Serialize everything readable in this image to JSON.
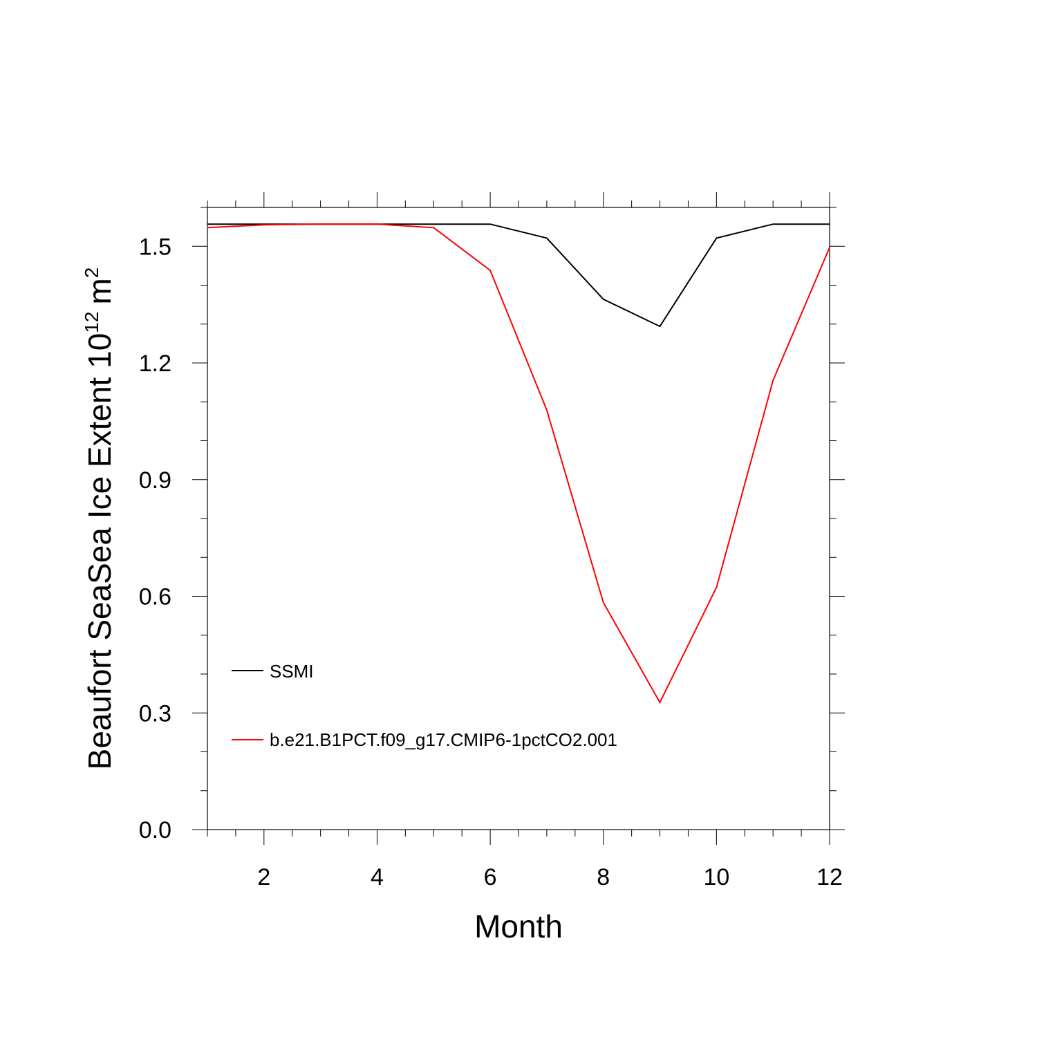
{
  "chart_data": {
    "type": "line",
    "title": "",
    "xlabel": "Month",
    "ylabel_main": "Beaufort SeaSea Ice Extent 10",
    "ylabel_exponent": "12",
    "ylabel_unit": "m",
    "ylabel_unit_exponent": "2",
    "xlim": [
      1,
      12
    ],
    "ylim": [
      0,
      1.6
    ],
    "x_ticks": [
      2,
      4,
      6,
      8,
      10,
      12
    ],
    "x_tick_labels": [
      "2",
      "4",
      "6",
      "8",
      "10",
      "12"
    ],
    "y_ticks": [
      0.0,
      0.3,
      0.6,
      0.9,
      1.2,
      1.5
    ],
    "y_tick_labels": [
      "0.0",
      "0.3",
      "0.6",
      "0.9",
      "1.2",
      "1.5"
    ],
    "grid": false,
    "legend_position": "lower-left",
    "x": [
      1,
      2,
      3,
      4,
      5,
      6,
      7,
      8,
      9,
      10,
      11,
      12
    ],
    "series": [
      {
        "name": "SSMI",
        "color": "#000000",
        "values": [
          1.557,
          1.557,
          1.557,
          1.557,
          1.557,
          1.557,
          1.521,
          1.364,
          1.294,
          1.521,
          1.557,
          1.557
        ]
      },
      {
        "name": "b.e21.B1PCT.f09_g17.CMIP6-1pctCO2.001",
        "color": "#ff0000",
        "values": [
          1.548,
          1.555,
          1.557,
          1.557,
          1.548,
          1.438,
          1.079,
          0.584,
          0.327,
          0.623,
          1.155,
          1.497
        ]
      }
    ]
  }
}
